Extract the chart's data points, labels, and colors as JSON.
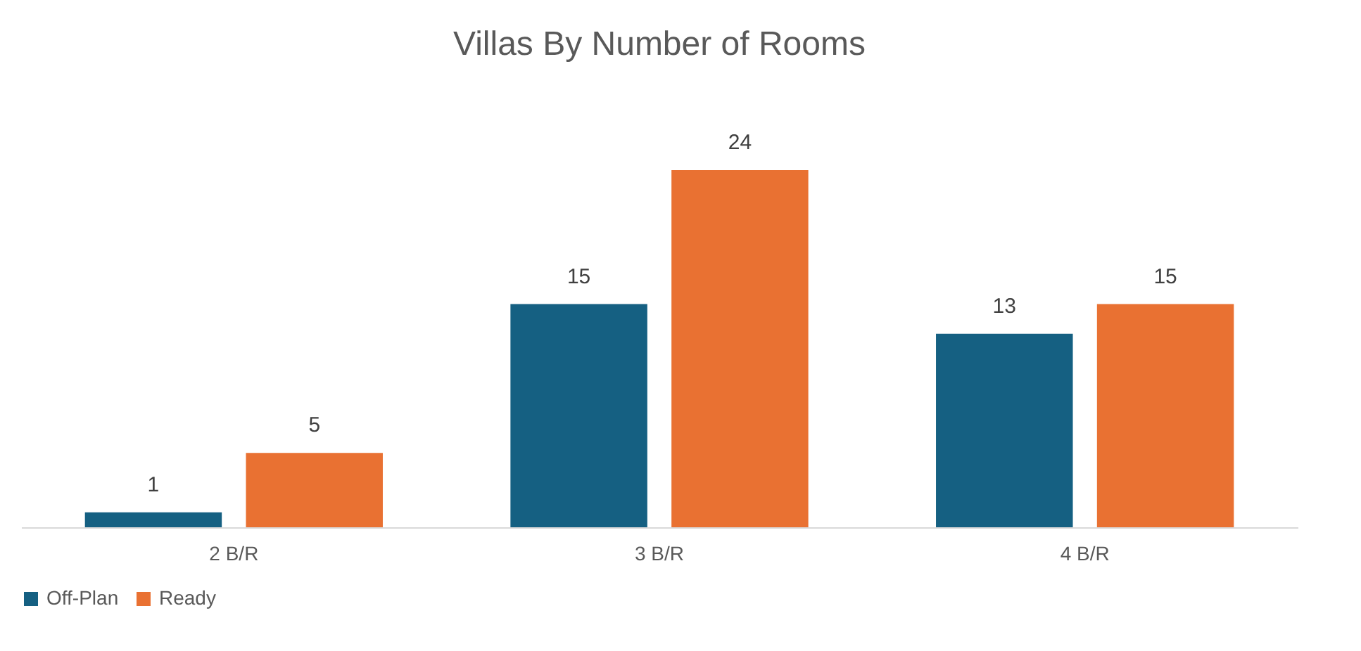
{
  "chart_data": {
    "type": "bar",
    "title": "Villas By Number of Rooms",
    "categories": [
      "2 B/R",
      "3 B/R",
      "4 B/R"
    ],
    "series": [
      {
        "name": "Off-Plan",
        "color": "#156082",
        "values": [
          1,
          15,
          13
        ]
      },
      {
        "name": "Ready",
        "color": "#e97132",
        "values": [
          5,
          24,
          15
        ]
      }
    ],
    "data_labels": true,
    "legend": "bottom",
    "grid": false
  }
}
